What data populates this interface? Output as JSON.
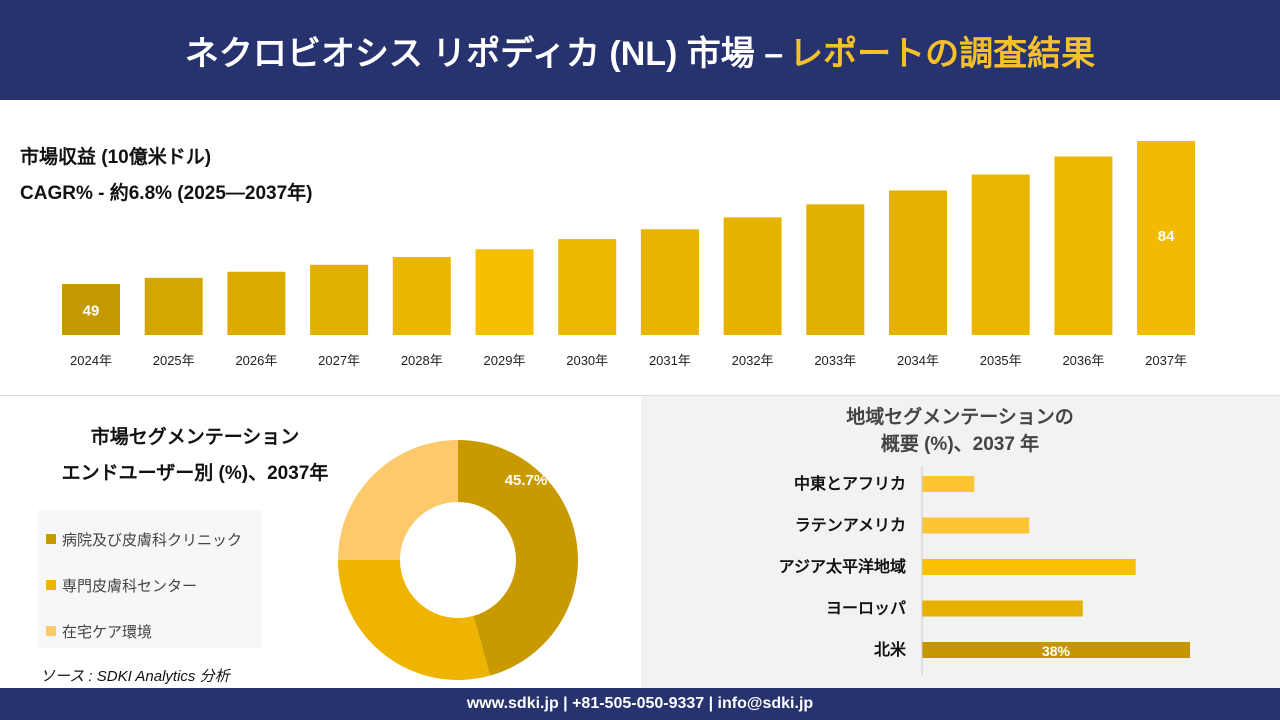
{
  "header": {
    "title_main": "ネクロビオシス リポディカ (NL) 市場 –",
    "title_highlight": "レポートの調査結果"
  },
  "revenue": {
    "label": "市場収益 (10億米ドル)",
    "cagr": "CAGR% - 約6.8% (2025—2037年)"
  },
  "chart_data": [
    {
      "type": "bar",
      "title": "市場収益 (10億米ドル)",
      "categories": [
        "2024年",
        "2025年",
        "2026年",
        "2027年",
        "2028年",
        "2029年",
        "2030年",
        "2031年",
        "2032年",
        "2033年",
        "2034年",
        "2035年",
        "2036年",
        "2037年"
      ],
      "values": [
        49,
        50.5,
        52,
        53.7,
        55.6,
        57.5,
        60,
        62.4,
        65.3,
        68.5,
        71.9,
        75.8,
        80.2,
        84
      ],
      "data_labels": {
        "0": "49",
        "13": "84"
      },
      "colors": [
        "#c49a00",
        "#d4a600",
        "#dcab00",
        "#e2b100",
        "#eab700",
        "#f5c000",
        "#edb800",
        "#e8b400",
        "#e5b200",
        "#e2b000",
        "#e4b100",
        "#e8b500",
        "#ebb700",
        "#f0bb00"
      ]
    },
    {
      "type": "pie",
      "title": "市場セグメンテーション エンドユーザー別 (%)、2037年",
      "categories": [
        "病院及び皮膚科クリニック",
        "専門皮膚科センター",
        "在宅ケア環境"
      ],
      "values": [
        45.7,
        29.3,
        25
      ],
      "data_labels": {
        "0": "45.7%"
      },
      "colors": [
        "#c99a00",
        "#eeb400",
        "#fdc96a"
      ]
    },
    {
      "type": "bar",
      "orientation": "horizontal",
      "title": "地域セグメンテーションの 概要 (%)、2037 年",
      "categories": [
        "中東とアフリカ",
        "ラテンアメリカ",
        "アジア太平洋地域",
        "ヨーロッパ",
        "北米"
      ],
      "values": [
        7.4,
        15.2,
        30.3,
        22.8,
        38
      ],
      "data_labels": {
        "4": "38%"
      },
      "colors": [
        "#fdc534",
        "#fdc534",
        "#f8c000",
        "#e5b000",
        "#c49700"
      ]
    }
  ],
  "segment": {
    "title1": "市場セグメンテーション",
    "title2": "エンドユーザー別 (%)、2037年"
  },
  "regional": {
    "title1": "地域セグメンテーションの",
    "title2": "概要 (%)、2037 年"
  },
  "source": "ソース : SDKI Analytics 分析",
  "footer": "www.sdki.jp | +81-505-050-9337 | info@sdki.jp"
}
